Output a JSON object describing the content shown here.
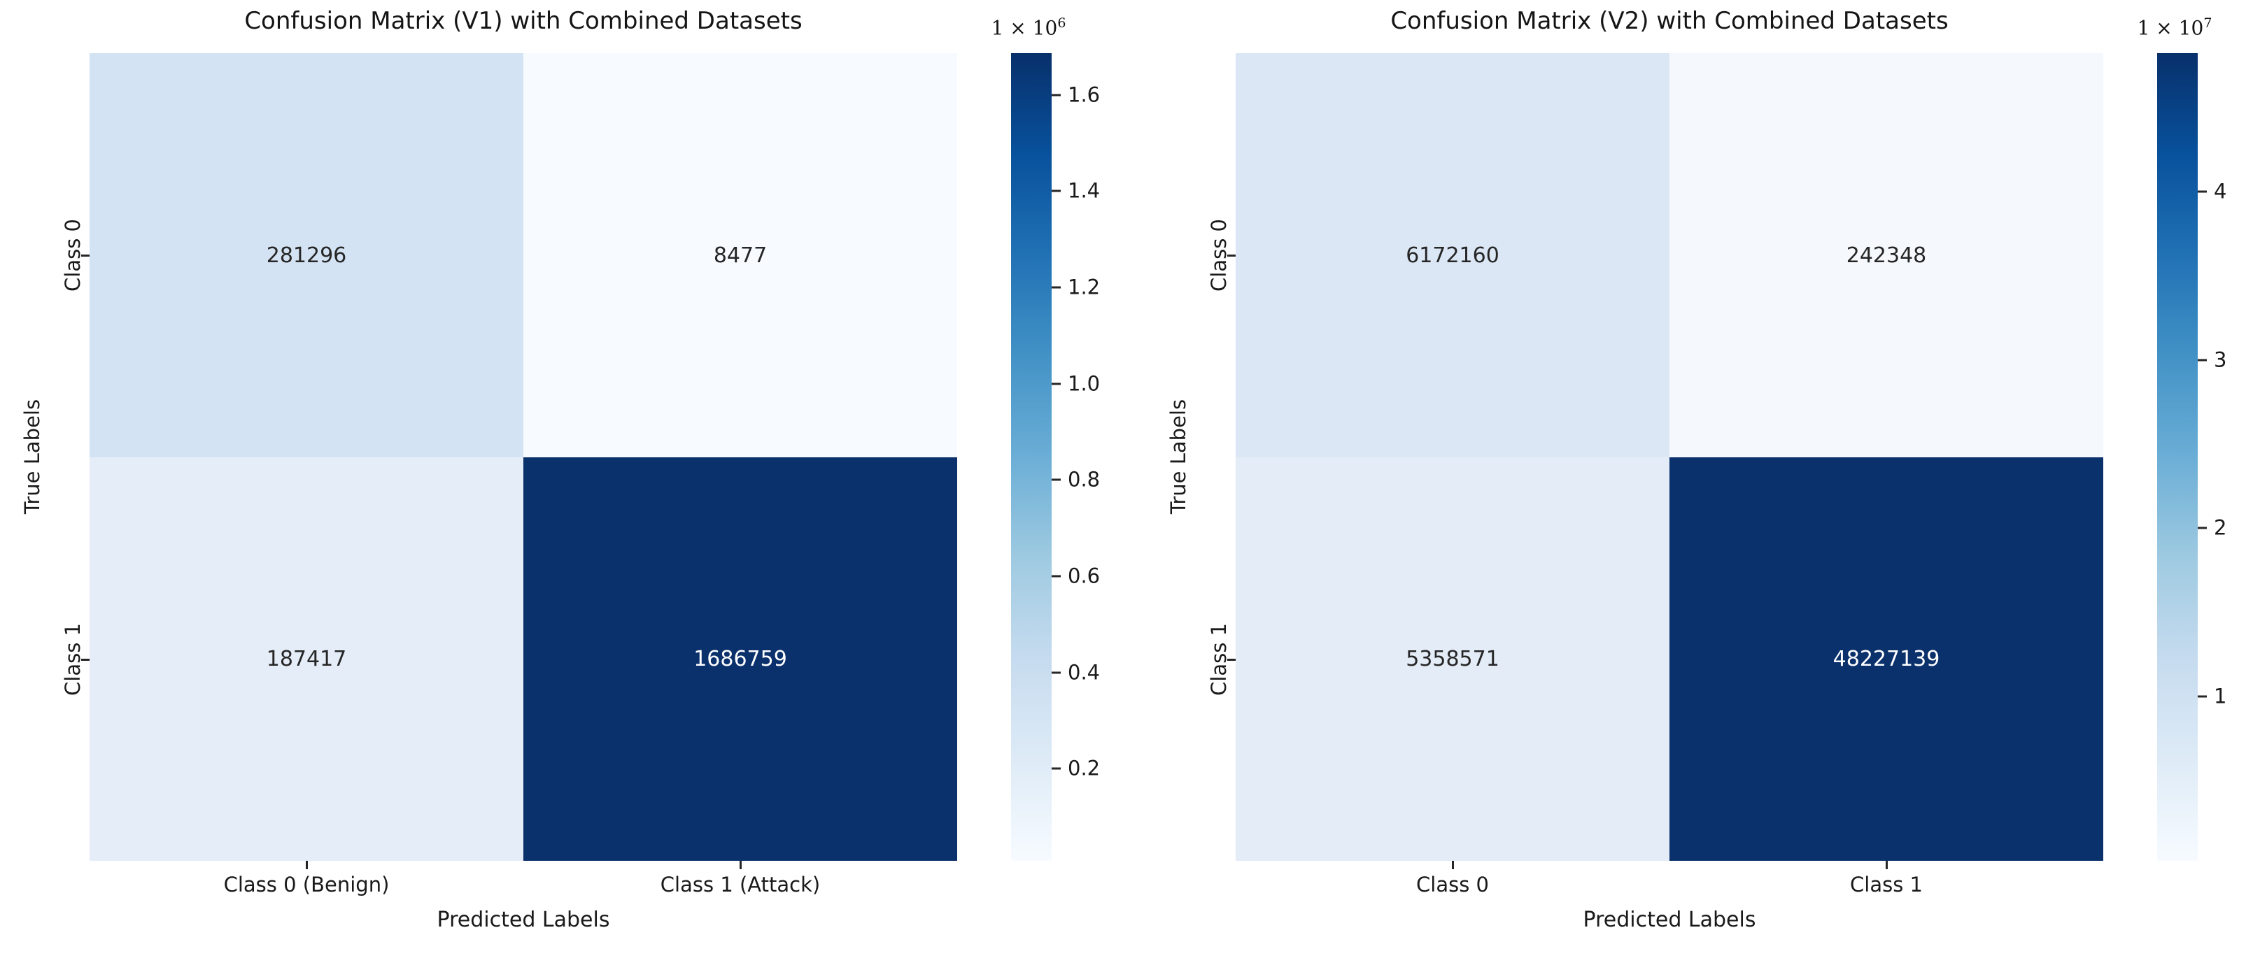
{
  "figure": {
    "background": "#ffffff",
    "text_color": "#262626",
    "colormap_min_color": "#f7fbff",
    "colormap_max_color": "#08306b"
  },
  "chart_data": [
    {
      "type": "heatmap",
      "title": "Confusion Matrix (V1) with Combined Datasets",
      "xlabel": "Predicted Labels",
      "ylabel": "True Labels",
      "x_tick_labels": [
        "Class 0 (Benign)",
        "Class 1 (Attack)"
      ],
      "y_tick_labels": [
        "Class 0",
        "Class 1"
      ],
      "rows": [
        [
          281296,
          8477
        ],
        [
          187417,
          1686759
        ]
      ],
      "cell_colors": [
        [
          "#d4e3f3",
          "#f7fbff"
        ],
        [
          "#e4edf8",
          "#0b316c"
        ]
      ],
      "cell_text_colors": [
        [
          "#262626",
          "#262626"
        ],
        [
          "#262626",
          "#ffffff"
        ]
      ],
      "colormap": "Blues",
      "legend_position": "right-colorbar",
      "grid": false,
      "colorbar": {
        "offset_mantissa": "1 × 10",
        "offset_exponent": "6",
        "tick_values": [
          200000,
          400000,
          600000,
          800000,
          1000000,
          1200000,
          1400000,
          1600000
        ],
        "tick_labels": [
          "0.2",
          "0.4",
          "0.6",
          "0.8",
          "1.0",
          "1.2",
          "1.4",
          "1.6"
        ]
      }
    },
    {
      "type": "heatmap",
      "title": "Confusion Matrix (V2) with Combined Datasets",
      "xlabel": "Predicted Labels",
      "ylabel": "True Labels",
      "x_tick_labels": [
        "Class 0",
        "Class 1"
      ],
      "y_tick_labels": [
        "Class 0",
        "Class 1"
      ],
      "rows": [
        [
          6172160,
          242348
        ],
        [
          5358571,
          48227139
        ]
      ],
      "cell_colors": [
        [
          "#dbe7f4",
          "#f5f9fd"
        ],
        [
          "#e3ecf7",
          "#0b316c"
        ]
      ],
      "cell_text_colors": [
        [
          "#262626",
          "#262626"
        ],
        [
          "#262626",
          "#ffffff"
        ]
      ],
      "colormap": "Blues",
      "legend_position": "right-colorbar",
      "grid": false,
      "colorbar": {
        "offset_mantissa": "1 × 10",
        "offset_exponent": "7",
        "tick_values": [
          10000000,
          20000000,
          30000000,
          40000000
        ],
        "tick_labels": [
          "1",
          "2",
          "3",
          "4"
        ]
      }
    }
  ]
}
